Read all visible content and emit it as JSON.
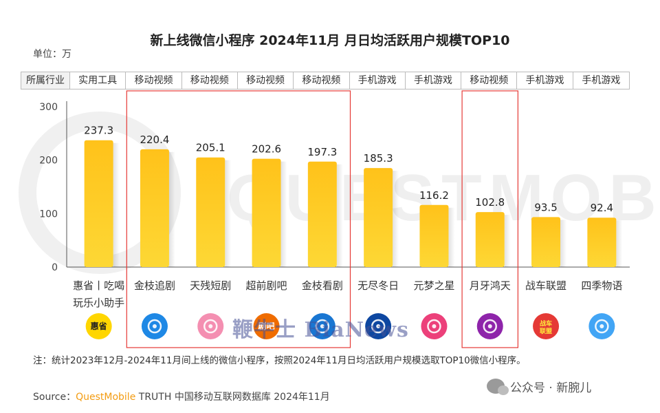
{
  "title": "新上线微信小程序 2024年11月 月日均活跃用户规模TOP10",
  "unit_label": "单位：万",
  "industry_header": "所属行业",
  "watermark": {
    "quest": "QUESTMOBILE",
    "overlay": "鞭牛士 BiaNews"
  },
  "chart_data": {
    "type": "bar",
    "title": "新上线微信小程序 2024年11月 月日均活跃用户规模TOP10",
    "ylabel": "单位：万",
    "ylim": [
      0,
      300
    ],
    "yticks": [
      0,
      100,
      200,
      300
    ],
    "categories": [
      "惠省丨吃喝玩乐小助手",
      "金枝追剧",
      "天残短剧",
      "超前剧吧",
      "金枝看剧",
      "无尽冬日",
      "元梦之星",
      "月牙鸿天",
      "战车联盟",
      "四季物语"
    ],
    "category_lines": [
      [
        "惠省丨吃喝",
        "玩乐小助手"
      ],
      [
        "金枝追剧"
      ],
      [
        "天残短剧"
      ],
      [
        "超前剧吧"
      ],
      [
        "金枝看剧"
      ],
      [
        "无尽冬日"
      ],
      [
        "元梦之星"
      ],
      [
        "月牙鸿天"
      ],
      [
        "战车联盟"
      ],
      [
        "四季物语"
      ]
    ],
    "values": [
      237.3,
      220.4,
      205.1,
      202.6,
      197.3,
      185.3,
      116.2,
      102.8,
      93.5,
      92.4
    ],
    "value_labels": [
      "237.3",
      "220.4",
      "205.1",
      "202.6",
      "197.3",
      "185.3",
      "116.2",
      "102.8",
      "93.5",
      "92.4"
    ],
    "industries": [
      "实用工具",
      "移动视频",
      "移动视频",
      "移动视频",
      "移动视频",
      "手机游戏",
      "手机游戏",
      "移动视频",
      "手机游戏",
      "手机游戏"
    ],
    "highlight_groups": [
      [
        1,
        4
      ],
      [
        7,
        7
      ]
    ],
    "colors": {
      "bar_top": "#ffc21a",
      "bar_bottom": "#fdd835",
      "highlight": "#e53935",
      "axis": "#555555"
    },
    "app_icons": [
      {
        "name": "huisheng-icon",
        "bg": "#ffd600",
        "text": "惠省",
        "fg": "#222222"
      },
      {
        "name": "jinzhi-zhuiju-icon",
        "bg": "#1e88e5",
        "text": "",
        "fg": "#ffffff"
      },
      {
        "name": "tiancan-duanju-icon",
        "bg": "#f48fb1",
        "text": "",
        "fg": "#ffffff"
      },
      {
        "name": "chaoqian-juba-icon",
        "bg": "#ef6c00",
        "text": "剧吧",
        "fg": "#ffffff"
      },
      {
        "name": "jinzhi-kanju-icon",
        "bg": "#1976d2",
        "text": "",
        "fg": "#ffffff"
      },
      {
        "name": "wujin-dongri-icon",
        "bg": "#0d47a1",
        "text": "",
        "fg": "#ffffff"
      },
      {
        "name": "yuanmeng-zhixing-icon",
        "bg": "#ec407a",
        "text": "",
        "fg": "#ffffff"
      },
      {
        "name": "yueya-hongtian-icon",
        "bg": "#8e24aa",
        "text": "",
        "fg": "#ffffff"
      },
      {
        "name": "zhanche-lianmeng-icon",
        "bg": "#e53935",
        "text": "战车联盟",
        "fg": "#ffeb3b"
      },
      {
        "name": "siji-wuyu-icon",
        "bg": "#42a5f5",
        "text": "",
        "fg": "#ffffff"
      }
    ]
  },
  "note": "注：统计2023年12月-2024年11月间上线的微信小程序，按照2024年11月日均活跃用户规模选取TOP10微信小程序。",
  "source": {
    "prefix": "Source：",
    "brand": "QuestMobile",
    "rest": " TRUTH 中国移动互联网数据库 2024年11月"
  },
  "wechat_account": "公众号 · 新腕儿"
}
